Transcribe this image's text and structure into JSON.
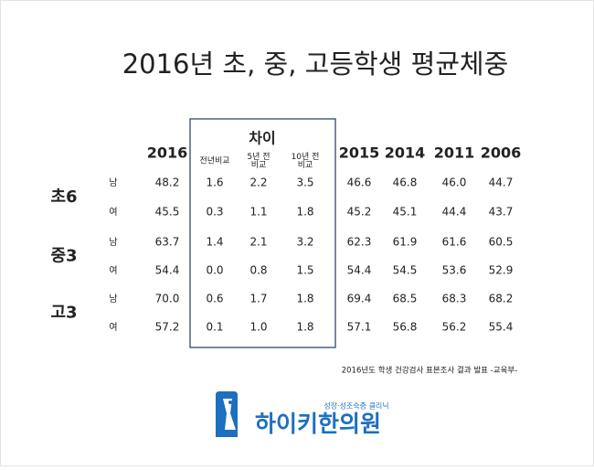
{
  "title": "2016년 초, 중, 고등학생 평균체중",
  "table": {
    "diff_header": "차이",
    "columns": [
      [
        "2016"
      ],
      [
        "전년비교"
      ],
      [
        "5년 전",
        "비교"
      ],
      [
        "10년 전",
        "비교"
      ],
      [
        "2015"
      ],
      [
        "2014"
      ],
      [
        "2011"
      ],
      [
        "2006"
      ]
    ],
    "groups": [
      {
        "label": "초6",
        "rows": [
          {
            "sex": "남",
            "values": [
              "48.2",
              "1.6",
              "2.2",
              "3.5",
              "46.6",
              "46.8",
              "46.0",
              "44.7"
            ]
          },
          {
            "sex": "여",
            "values": [
              "45.5",
              "0.3",
              "1.1",
              "1.8",
              "45.2",
              "45.1",
              "44.4",
              "43.7"
            ]
          }
        ]
      },
      {
        "label": "중3",
        "rows": [
          {
            "sex": "남",
            "values": [
              "63.7",
              "1.4",
              "2.1",
              "3.2",
              "62.3",
              "61.9",
              "61.6",
              "60.5"
            ]
          },
          {
            "sex": "여",
            "values": [
              "54.4",
              "0.0",
              "0.8",
              "1.5",
              "54.4",
              "54.5",
              "53.6",
              "52.9"
            ]
          }
        ]
      },
      {
        "label": "고3",
        "rows": [
          {
            "sex": "남",
            "values": [
              "70.0",
              "0.6",
              "1.7",
              "1.8",
              "69.4",
              "68.5",
              "68.3",
              "68.2"
            ]
          },
          {
            "sex": "여",
            "values": [
              "57.2",
              "0.1",
              "1.0",
              "1.8",
              "57.1",
              "56.8",
              "56.2",
              "55.4"
            ]
          }
        ]
      }
    ]
  },
  "source": "2016년도 학생 건강검사 표본조사 결과 발표 -교육부-",
  "logo": {
    "tagline": "성장·성조숙증 클리닉",
    "name": "하이키한의원"
  }
}
